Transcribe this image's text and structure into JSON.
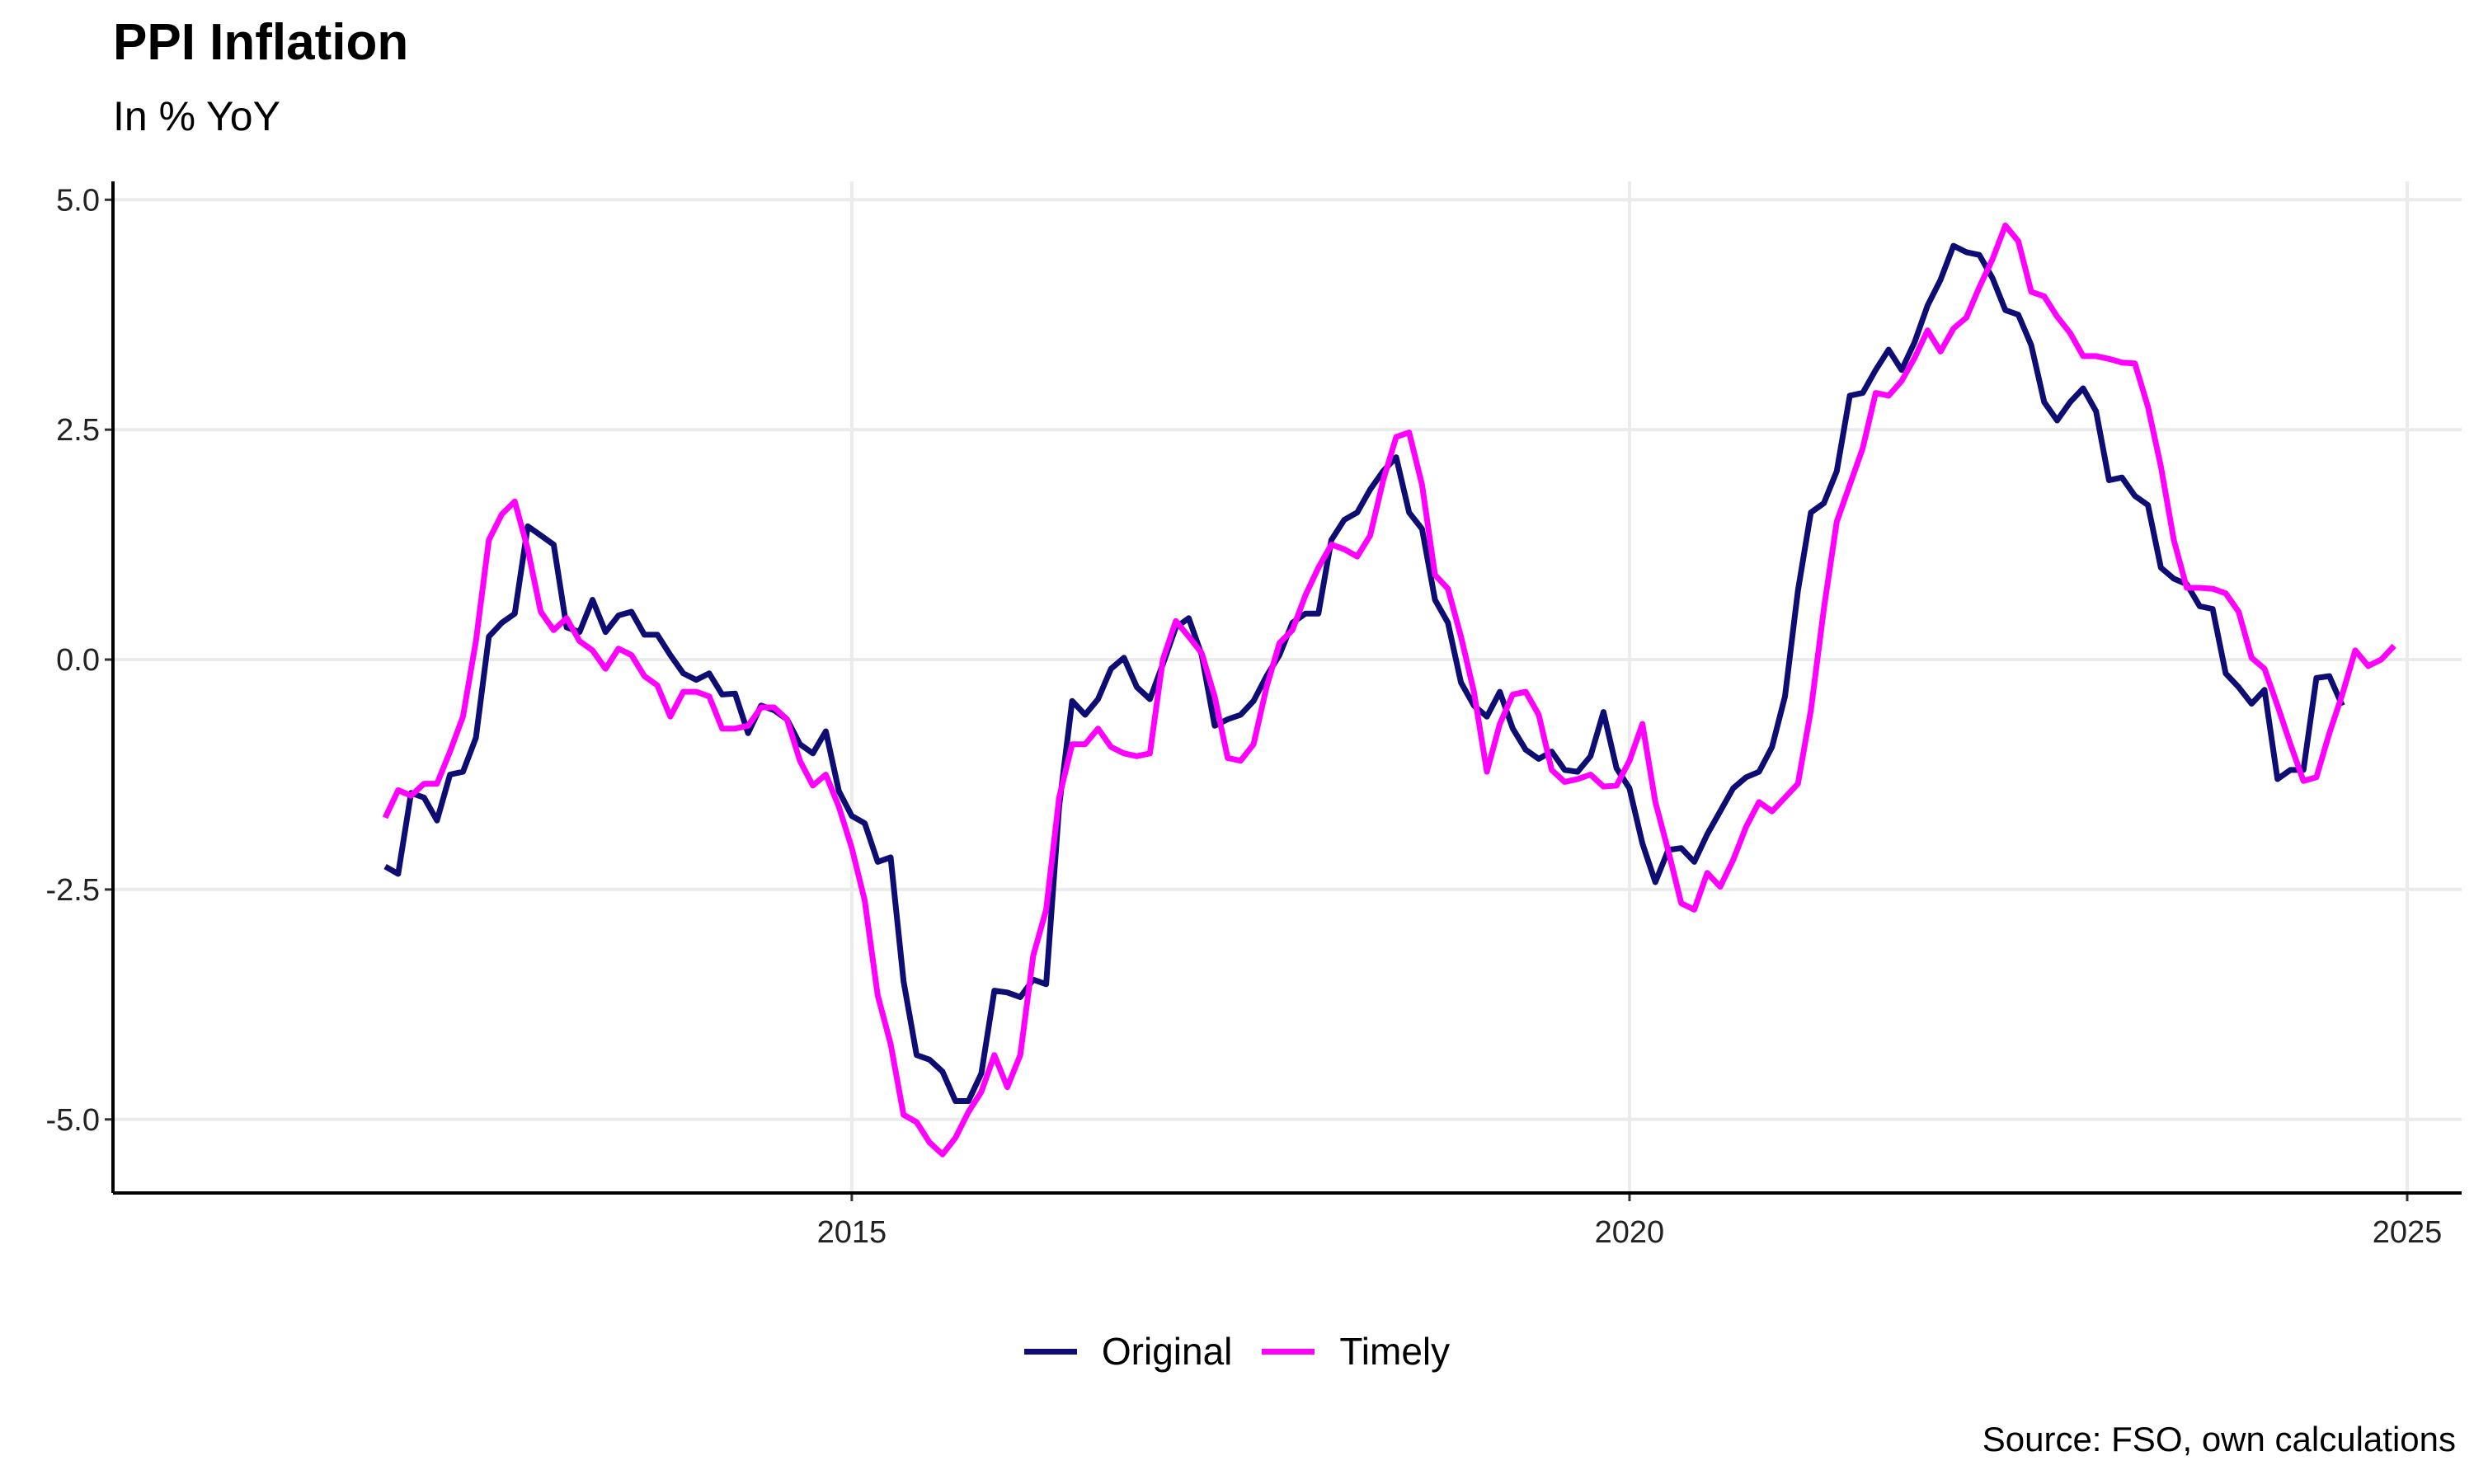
{
  "chart_data": {
    "type": "line",
    "title": "PPI Inflation",
    "subtitle": "In % YoY",
    "source": "Source: FSO, own calculations",
    "xlabel": "",
    "ylabel": "",
    "xlim": [
      2010.25,
      2025.35
    ],
    "ylim": [
      -5.8,
      5.2
    ],
    "x_ticks": [
      2015,
      2020,
      2025
    ],
    "x_tick_labels": [
      "2015",
      "2020",
      "2025"
    ],
    "y_ticks": [
      -5.0,
      -2.5,
      0.0,
      2.5,
      5.0
    ],
    "y_tick_labels": [
      "-5.0",
      "-2.5",
      "0.0",
      "2.5",
      "5.0"
    ],
    "grid": true,
    "legend_position": "bottom",
    "colors": {
      "Original": "#0d0d73",
      "Timely": "#ff00ff"
    },
    "x_start": 2012.0,
    "x_step": 0.08333,
    "series": [
      {
        "name": "Original",
        "values": [
          -2.25,
          -2.33,
          -1.45,
          -1.5,
          -1.75,
          -1.25,
          -1.22,
          -0.85,
          0.25,
          0.4,
          0.5,
          1.45,
          1.35,
          1.25,
          0.35,
          0.3,
          0.65,
          0.3,
          0.48,
          0.52,
          0.27,
          0.27,
          0.05,
          -0.15,
          -0.22,
          -0.15,
          -0.38,
          -0.37,
          -0.8,
          -0.5,
          -0.55,
          -0.65,
          -0.92,
          -1.02,
          -0.78,
          -1.43,
          -1.7,
          -1.78,
          -2.2,
          -2.15,
          -3.5,
          -4.3,
          -4.35,
          -4.48,
          -4.8,
          -4.8,
          -4.5,
          -3.6,
          -3.62,
          -3.67,
          -3.48,
          -3.53,
          -1.6,
          -0.45,
          -0.6,
          -0.43,
          -0.1,
          0.02,
          -0.3,
          -0.43,
          -0.05,
          0.35,
          0.45,
          0.05,
          -0.72,
          -0.65,
          -0.6,
          -0.45,
          -0.18,
          0.05,
          0.4,
          0.5,
          0.5,
          1.3,
          1.52,
          1.6,
          1.85,
          2.05,
          2.2,
          1.6,
          1.42,
          0.65,
          0.4,
          -0.25,
          -0.5,
          -0.62,
          -0.35,
          -0.75,
          -0.98,
          -1.08,
          -1.0,
          -1.2,
          -1.22,
          -1.05,
          -0.57,
          -1.18,
          -1.4,
          -2.0,
          -2.42,
          -2.07,
          -2.05,
          -2.2,
          -1.9,
          -1.65,
          -1.4,
          -1.28,
          -1.22,
          -0.95,
          -0.4,
          0.75,
          1.6,
          1.7,
          2.05,
          2.87,
          2.9,
          3.15,
          3.37,
          3.15,
          3.45,
          3.85,
          4.13,
          4.5,
          4.43,
          4.4,
          4.15,
          3.8,
          3.75,
          3.42,
          2.8,
          2.6,
          2.8,
          2.95,
          2.7,
          1.95,
          1.98,
          1.78,
          1.68,
          1.0,
          0.88,
          0.82,
          0.58,
          0.55,
          -0.15,
          -0.3,
          -0.48,
          -0.33,
          -1.3,
          -1.2,
          -1.2,
          -0.2,
          -0.18,
          -0.5
        ]
      },
      {
        "name": "Timely",
        "values": [
          -1.72,
          -1.42,
          -1.48,
          -1.35,
          -1.35,
          -1.0,
          -0.62,
          0.2,
          1.3,
          1.58,
          1.72,
          1.2,
          0.52,
          0.32,
          0.45,
          0.2,
          0.1,
          -0.1,
          0.12,
          0.05,
          -0.18,
          -0.28,
          -0.62,
          -0.35,
          -0.35,
          -0.4,
          -0.75,
          -0.75,
          -0.72,
          -0.52,
          -0.52,
          -0.65,
          -1.1,
          -1.37,
          -1.25,
          -1.6,
          -2.05,
          -2.62,
          -3.65,
          -4.18,
          -4.95,
          -5.03,
          -5.25,
          -5.38,
          -5.2,
          -4.92,
          -4.7,
          -4.3,
          -4.65,
          -4.3,
          -3.22,
          -2.72,
          -1.5,
          -0.92,
          -0.92,
          -0.75,
          -0.95,
          -1.02,
          -1.05,
          -1.02,
          0.0,
          0.42,
          0.25,
          0.07,
          -0.4,
          -1.07,
          -1.1,
          -0.92,
          -0.3,
          0.18,
          0.32,
          0.7,
          1.0,
          1.25,
          1.2,
          1.12,
          1.35,
          1.95,
          2.42,
          2.47,
          1.9,
          0.92,
          0.77,
          0.25,
          -0.35,
          -1.22,
          -0.7,
          -0.38,
          -0.35,
          -0.6,
          -1.2,
          -1.33,
          -1.3,
          -1.25,
          -1.38,
          -1.37,
          -1.1,
          -0.7,
          -1.55,
          -2.08,
          -2.65,
          -2.72,
          -2.32,
          -2.47,
          -2.18,
          -1.82,
          -1.55,
          -1.65,
          -1.5,
          -1.35,
          -0.55,
          0.55,
          1.5,
          1.9,
          2.3,
          2.9,
          2.87,
          3.03,
          3.28,
          3.58,
          3.35,
          3.6,
          3.72,
          4.05,
          4.35,
          4.72,
          4.55,
          4.0,
          3.95,
          3.73,
          3.55,
          3.3,
          3.3,
          3.27,
          3.23,
          3.22,
          2.75,
          2.1,
          1.3,
          0.78,
          0.78,
          0.77,
          0.72,
          0.52,
          0.02,
          -0.1,
          -0.5,
          -0.92,
          -1.32,
          -1.28,
          -0.8,
          -0.38,
          0.1,
          -0.07,
          0.0,
          0.15
        ]
      }
    ]
  }
}
